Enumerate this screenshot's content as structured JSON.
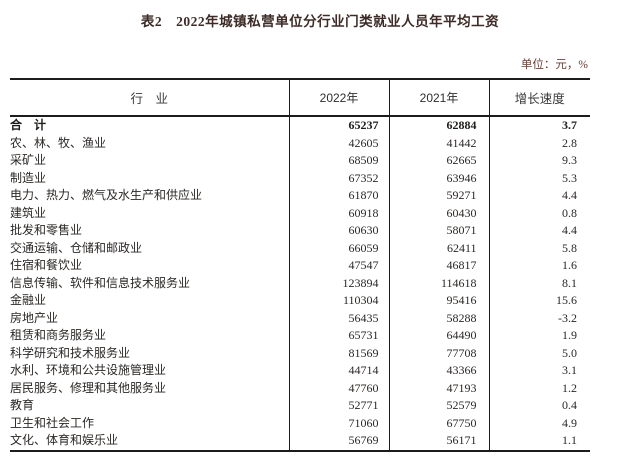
{
  "page": {
    "title": "表2　2022年城镇私营单位分行业门类就业人员年平均工资",
    "unit_note": "单位：元，%"
  },
  "table": {
    "columns": [
      "行　业",
      "2022年",
      "2021年",
      "增长速度"
    ],
    "rows": [
      {
        "industry": "合　计",
        "y2022": "65237",
        "y2021": "62884",
        "growth": "3.7",
        "bold": true
      },
      {
        "industry": "农、林、牧、渔业",
        "y2022": "42605",
        "y2021": "41442",
        "growth": "2.8",
        "bold": false
      },
      {
        "industry": "采矿业",
        "y2022": "68509",
        "y2021": "62665",
        "growth": "9.3",
        "bold": false
      },
      {
        "industry": "制造业",
        "y2022": "67352",
        "y2021": "63946",
        "growth": "5.3",
        "bold": false
      },
      {
        "industry": "电力、热力、燃气及水生产和供应业",
        "y2022": "61870",
        "y2021": "59271",
        "growth": "4.4",
        "bold": false
      },
      {
        "industry": "建筑业",
        "y2022": "60918",
        "y2021": "60430",
        "growth": "0.8",
        "bold": false
      },
      {
        "industry": "批发和零售业",
        "y2022": "60630",
        "y2021": "58071",
        "growth": "4.4",
        "bold": false
      },
      {
        "industry": "交通运输、仓储和邮政业",
        "y2022": "66059",
        "y2021": "62411",
        "growth": "5.8",
        "bold": false
      },
      {
        "industry": "住宿和餐饮业",
        "y2022": "47547",
        "y2021": "46817",
        "growth": "1.6",
        "bold": false
      },
      {
        "industry": "信息传输、软件和信息技术服务业",
        "y2022": "123894",
        "y2021": "114618",
        "growth": "8.1",
        "bold": false
      },
      {
        "industry": "金融业",
        "y2022": "110304",
        "y2021": "95416",
        "growth": "15.6",
        "bold": false
      },
      {
        "industry": "房地产业",
        "y2022": "56435",
        "y2021": "58288",
        "growth": "-3.2",
        "bold": false
      },
      {
        "industry": "租赁和商务服务业",
        "y2022": "65731",
        "y2021": "64490",
        "growth": "1.9",
        "bold": false
      },
      {
        "industry": "科学研究和技术服务业",
        "y2022": "81569",
        "y2021": "77708",
        "growth": "5.0",
        "bold": false
      },
      {
        "industry": "水利、环境和公共设施管理业",
        "y2022": "44714",
        "y2021": "43366",
        "growth": "3.1",
        "bold": false
      },
      {
        "industry": "居民服务、修理和其他服务业",
        "y2022": "47760",
        "y2021": "47193",
        "growth": "1.2",
        "bold": false
      },
      {
        "industry": "教育",
        "y2022": "52771",
        "y2021": "52579",
        "growth": "0.4",
        "bold": false
      },
      {
        "industry": "卫生和社会工作",
        "y2022": "71060",
        "y2021": "67750",
        "growth": "4.9",
        "bold": false
      },
      {
        "industry": "文化、体育和娱乐业",
        "y2022": "56769",
        "y2021": "56171",
        "growth": "1.1",
        "bold": false
      }
    ]
  },
  "colors": {
    "border": "#1c1c1c",
    "title_text": "#3c2b26",
    "unit_text": "#6b4038",
    "body_text": "#2b2826",
    "background": "#ffffff"
  }
}
